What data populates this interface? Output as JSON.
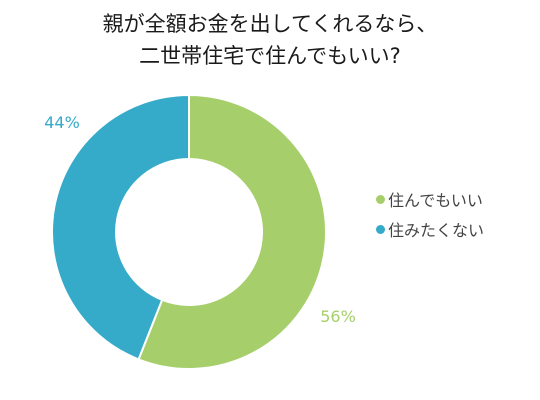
{
  "chart_data": {
    "type": "pie",
    "title_lines": [
      "親が全額お金を出してくれるなら、",
      "二世帯住宅で住んでもいい?"
    ],
    "slices": [
      {
        "label": "住んでもいい",
        "value": 56,
        "value_label": "56%",
        "color": "#a6cf6b"
      },
      {
        "label": "住みたくない",
        "value": 44,
        "value_label": "44%",
        "color": "#35aac9"
      }
    ],
    "legend_position": "right"
  }
}
